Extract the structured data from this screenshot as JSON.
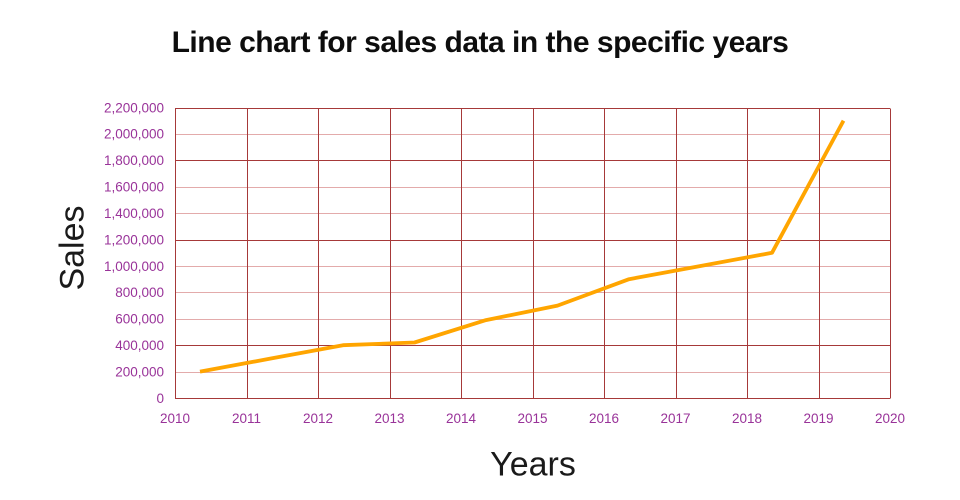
{
  "page": {
    "title": "Line chart for sales data in the specific years",
    "background_color": "#ffffff"
  },
  "chart_data": {
    "type": "line",
    "title": "Line chart for sales data in the specific years",
    "xlabel": "Years",
    "ylabel": "Sales",
    "x": [
      2010,
      2011,
      2012,
      2013,
      2014,
      2015,
      2016,
      2017,
      2018,
      2019
    ],
    "series": [
      {
        "name": "sales",
        "values": [
          200000,
          300000,
          400000,
          420000,
          590000,
          700000,
          900000,
          1000000,
          1100000,
          2100000
        ],
        "color": "#ffa500",
        "line_width": 3.8
      }
    ],
    "xlim": [
      2010,
      2020
    ],
    "ylim": [
      0,
      2200000
    ],
    "x_ticks": [
      2010,
      2011,
      2012,
      2013,
      2014,
      2015,
      2016,
      2017,
      2018,
      2019,
      2020
    ],
    "x_tick_labels": [
      "2010",
      "2011",
      "2012",
      "2013",
      "2014",
      "2015",
      "2016",
      "2017",
      "2018",
      "2019",
      "2020"
    ],
    "y_ticks": [
      0,
      200000,
      400000,
      600000,
      800000,
      1000000,
      1200000,
      1400000,
      1600000,
      1800000,
      2000000,
      2200000
    ],
    "y_tick_labels": [
      "0",
      "200,000",
      "400,000",
      "600,000",
      "800,000",
      "1,000,000",
      "1,200,000",
      "1,400,000",
      "1,600,000",
      "1,800,000",
      "2,000,000",
      "2,200,000"
    ],
    "grid": true,
    "y_grid_weights": [
      "dark",
      "light",
      "dark",
      "light",
      "light",
      "light",
      "dark",
      "light",
      "light",
      "dark",
      "light",
      "dark"
    ],
    "x_grid_weights": [
      "dark",
      "dark",
      "dark",
      "dark",
      "dark",
      "dark",
      "dark",
      "dark",
      "dark",
      "dark",
      "dark"
    ],
    "grid_color_dark": "#a63939",
    "grid_color_light": "#e3abab",
    "tick_label_color": "#993399",
    "legend_position": "none",
    "point_x_offset_years": 0.35
  }
}
